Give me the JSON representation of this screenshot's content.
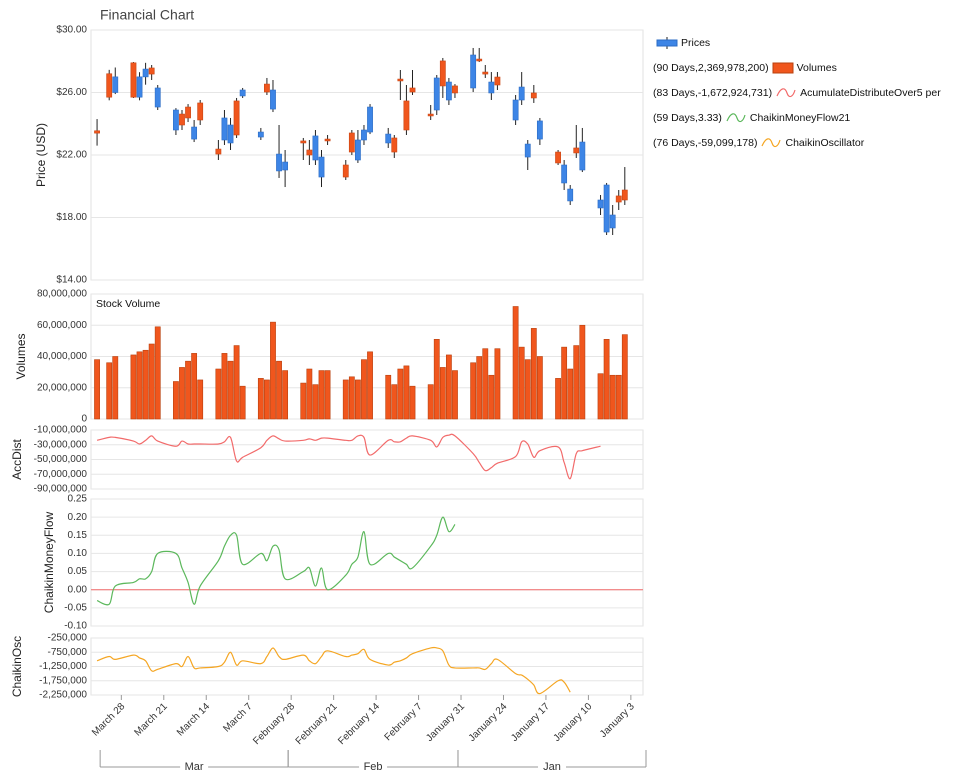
{
  "chart_data": {
    "type": "financial",
    "title": "Financial Chart",
    "x": [
      "April 1",
      "March 30",
      "March 29",
      "March 26",
      "March 25",
      "March 24",
      "March 23",
      "March 22",
      "March 19",
      "March 18",
      "March 17",
      "March 16",
      "March 15",
      "March 12",
      "March 11",
      "March 10",
      "March 9",
      "March 8",
      "March 5",
      "March 4",
      "March 3",
      "March 2",
      "March 1",
      "February 26",
      "February 25",
      "February 24",
      "February 23",
      "February 22",
      "February 19",
      "February 18",
      "February 17",
      "February 16",
      "February 15",
      "February 12",
      "February 11",
      "February 10",
      "February 9",
      "February 8",
      "February 5",
      "February 4",
      "February 3",
      "February 2",
      "February 1",
      "January 29",
      "January 28",
      "January 27",
      "January 26",
      "January 25",
      "January 22",
      "January 21",
      "January 20",
      "January 19",
      "January 18",
      "January 15",
      "January 14",
      "January 13",
      "January 12",
      "January 11",
      "January 8",
      "January 7",
      "January 6",
      "January 5",
      "January 4"
    ],
    "xlim": [
      "April 2",
      "January 1"
    ],
    "xticks": [
      "March 28",
      "March 21",
      "March 14",
      "March 7",
      "February 28",
      "February 21",
      "February 14",
      "February 7",
      "January 31",
      "January 24",
      "January 17",
      "January 10",
      "January 3"
    ],
    "x_groups": [
      {
        "label": "Mar",
        "range": [
          "March 31",
          "March 1"
        ]
      },
      {
        "label": "Feb",
        "range": [
          "February 28",
          "February 1"
        ]
      },
      {
        "label": "Jan",
        "range": [
          "January 31",
          "January 1"
        ]
      }
    ],
    "grid": true,
    "legend": "right",
    "panels": [
      {
        "type": "candlestick",
        "ylabel": "Price (USD)",
        "ylim": [
          14,
          30
        ],
        "yticks": [
          {
            "value": 30,
            "label": "$30.00"
          },
          {
            "value": 26,
            "label": "$26.00"
          },
          {
            "value": 22,
            "label": "$22.00"
          },
          {
            "value": 18,
            "label": "$18.00"
          },
          {
            "value": 14,
            "label": "$14.00"
          }
        ],
        "series": [
          {
            "name": "Prices",
            "color": "#3d85e6",
            "up_color": "#f0561d",
            "open": [
              23.4,
              25.7,
              27.0,
              25.7,
              27.0,
              27.5,
              27.18,
              26.29,
              24.88,
              23.92,
              24.37,
              23.79,
              24.24,
              22.06,
              24.37,
              23.92,
              23.28,
              26.16,
              23.47,
              26.03,
              26.16,
              22.06,
              21.55,
              22.77,
              22.0,
              23.22,
              21.87,
              22.9,
              20.59,
              22.19,
              22.96,
              23.6,
              25.07,
              23.34,
              22.19,
              26.74,
              23.6,
              26.03,
              24.5,
              26.93,
              26.42,
              26.67,
              25.97,
              28.4,
              28.02,
              27.18,
              26.67,
              26.48,
              25.52,
              26.35,
              22.7,
              25.65,
              24.18,
              21.49,
              21.36,
              19.82,
              22.13,
              22.83,
              19.12,
              20.08,
              18.16,
              18.99,
              19.12
            ],
            "high": [
              24.3,
              27.45,
              27.6,
              27.95,
              27.3,
              27.9,
              27.76,
              26.48,
              25.0,
              24.88,
              25.26,
              24.24,
              25.52,
              22.96,
              24.88,
              24.37,
              25.65,
              26.29,
              23.73,
              26.93,
              26.8,
              23.92,
              22.32,
              23.09,
              22.96,
              23.6,
              22.32,
              23.28,
              21.68,
              23.6,
              23.6,
              23.92,
              25.26,
              23.73,
              23.28,
              27.44,
              26.48,
              27.44,
              25.2,
              27.12,
              28.21,
              26.93,
              26.54,
              28.85,
              28.85,
              27.76,
              27.31,
              27.31,
              25.84,
              27.31,
              22.96,
              26.48,
              24.37,
              22.32,
              21.68,
              20.08,
              23.92,
              23.73,
              19.44,
              20.21,
              18.8,
              19.76,
              21.23
            ],
            "low": [
              22.6,
              25.5,
              25.9,
              25.65,
              25.5,
              26.5,
              26.8,
              24.88,
              23.28,
              23.6,
              24.11,
              22.83,
              23.92,
              21.68,
              22.64,
              22.32,
              23.09,
              25.65,
              22.96,
              25.84,
              24.75,
              20.53,
              19.95,
              21.68,
              21.36,
              21.36,
              19.95,
              22.64,
              20.4,
              22.0,
              21.49,
              22.64,
              23.34,
              22.45,
              21.81,
              25.52,
              23.28,
              25.84,
              24.24,
              24.56,
              25.65,
              25.2,
              25.65,
              26.03,
              27.95,
              26.93,
              25.52,
              26.16,
              23.92,
              25.2,
              21.04,
              25.33,
              22.64,
              21.36,
              19.76,
              18.8,
              21.81,
              20.91,
              18.16,
              16.88,
              16.88,
              18.48,
              18.8
            ],
            "close": [
              23.55,
              27.2,
              26.0,
              27.9,
              25.7,
              27.0,
              27.57,
              25.07,
              23.6,
              24.62,
              25.07,
              23.02,
              25.33,
              22.38,
              22.96,
              22.77,
              25.46,
              25.78,
              23.15,
              26.54,
              24.94,
              20.98,
              21.04,
              22.9,
              22.32,
              21.68,
              20.59,
              23.02,
              21.36,
              23.41,
              21.68,
              22.96,
              23.47,
              22.77,
              23.09,
              26.86,
              25.46,
              26.29,
              24.62,
              24.88,
              28.02,
              25.52,
              26.42,
              26.29,
              28.14,
              27.31,
              25.97,
              26.99,
              24.24,
              25.52,
              21.87,
              25.97,
              23.02,
              22.19,
              20.21,
              19.06,
              22.45,
              21.04,
              18.61,
              17.07,
              17.33,
              19.38,
              19.76
            ]
          }
        ]
      },
      {
        "type": "bar",
        "ylabel": "Volumes",
        "annotation": "Stock Volume",
        "ylim": [
          0,
          80000000
        ],
        "yticks": [
          {
            "value": 80000000,
            "label": "80,000,000"
          },
          {
            "value": 60000000,
            "label": "60,000,000"
          },
          {
            "value": 40000000,
            "label": "40,000,000"
          },
          {
            "value": 20000000,
            "label": "20,000,000"
          },
          0
        ],
        "series": [
          {
            "name": "Volumes",
            "legend_prefix": "(90 Days,2,369,978,200)",
            "color": "#f0561d",
            "values": [
              38000000,
              36000000,
              40000000,
              41000000,
              43000000,
              44000000,
              48000000,
              59000000,
              24000000,
              33000000,
              37000000,
              42000000,
              25000000,
              32000000,
              42000000,
              37000000,
              47000000,
              21000000,
              26000000,
              25000000,
              62000000,
              37000000,
              31000000,
              23000000,
              32000000,
              22000000,
              31000000,
              31000000,
              25000000,
              27000000,
              25000000,
              38000000,
              43000000,
              28000000,
              22000000,
              32000000,
              34000000,
              21000000,
              22000000,
              51000000,
              33000000,
              41000000,
              31000000,
              36000000,
              40000000,
              45000000,
              28000000,
              45000000,
              72000000,
              46000000,
              38000000,
              58000000,
              40000000,
              26000000,
              46000000,
              32000000,
              47000000,
              60000000,
              29000000,
              51000000,
              28000000,
              28000000,
              54000000
            ]
          }
        ]
      },
      {
        "type": "line",
        "ylabel": "AccDist",
        "ylim": [
          -90000000,
          -10000000
        ],
        "yticks": [
          {
            "value": -10000000,
            "label": "-10,000,000"
          },
          {
            "value": -30000000,
            "label": "-30,000,000"
          },
          {
            "value": -50000000,
            "label": "-50,000,000"
          },
          {
            "value": -70000000,
            "label": "-70,000,000"
          },
          {
            "value": -90000000,
            "label": "-90,000,000"
          }
        ],
        "series": [
          {
            "name": "AcumulateDistributeOver5 per",
            "legend_prefix": "(83 Days,-1,672,924,731)",
            "color": "#f26b6b",
            "values": [
              -24000000,
              -20000000,
              -20000000,
              -25000000,
              -29000000,
              -24000000,
              -18000000,
              -25000000,
              -32000000,
              -25000000,
              -29000000,
              -29000000,
              -29000000,
              -29000000,
              -26000000,
              -20000000,
              -52000000,
              -47000000,
              -34000000,
              -24000000,
              -18000000,
              -22000000,
              -25000000,
              -24000000,
              -22000000,
              -24000000,
              -21000000,
              -21000000,
              -24000000,
              -24000000,
              -18000000,
              -20000000,
              -44000000,
              -24000000,
              -26000000,
              -26000000,
              -21000000,
              -18000000,
              -24000000,
              -33000000,
              -20000000,
              -17000000,
              -18000000,
              -42000000,
              -54000000,
              -65000000,
              -61000000,
              -55000000,
              -46000000,
              -26000000,
              -29000000,
              -47000000,
              -38000000,
              -33000000,
              -54000000,
              -76000000,
              -42000000,
              -38000000,
              -32000000,
              null,
              null,
              null,
              null
            ]
          }
        ]
      },
      {
        "type": "line",
        "ylabel": "ChaikinMoneyFlow",
        "ylim": [
          -0.1,
          0.25
        ],
        "zero_line_color": "#f26b6b",
        "yticks": [
          0.25,
          {
            "value": 0.2,
            "label": "0.20"
          },
          0.15,
          {
            "value": 0.1,
            "label": "0.10"
          },
          0.05,
          {
            "value": 0,
            "label": "0.00"
          },
          -0.05,
          {
            "value": -0.1,
            "label": "-0.10"
          }
        ],
        "series": [
          {
            "name": "ChaikinMoneyFlow21",
            "legend_prefix": "(59 Days,3.33)",
            "color": "#5cb85c",
            "values": [
              -0.03,
              -0.04,
              0.01,
              0.02,
              0.03,
              0.03,
              0.05,
              0.1,
              0.1,
              0.06,
              0.02,
              -0.04,
              0.01,
              0.08,
              0.12,
              0.15,
              0.15,
              0.07,
              0.1,
              0.08,
              0.12,
              0.11,
              0.03,
              0.05,
              0.06,
              0.01,
              0.06,
              0.0,
              0.04,
              0.07,
              0.09,
              0.16,
              0.07,
              0.1,
              0.09,
              0.08,
              0.07,
              0.06,
              0.12,
              0.15,
              0.2,
              0.16,
              0.18,
              null,
              null,
              null,
              null,
              null,
              null,
              null,
              null,
              null,
              null,
              null,
              null,
              null,
              null,
              null,
              null,
              null,
              null,
              null,
              null
            ]
          }
        ]
      },
      {
        "type": "line",
        "ylabel": "ChaikinOsc",
        "ylim": [
          -2250000,
          -250000
        ],
        "yticks": [
          {
            "value": -250000,
            "label": "-250,000"
          },
          {
            "value": -750000,
            "label": "-750,000"
          },
          {
            "value": -1250000,
            "label": "-1,250,000"
          },
          {
            "value": -1750000,
            "label": "-1,750,000"
          },
          {
            "value": -2250000,
            "label": "-2,250,000"
          }
        ],
        "series": [
          {
            "name": "ChaikinOscillator",
            "legend_prefix": "(76 Days,-59,099,178)",
            "color": "#f5a623",
            "values": [
              -1050000,
              -900000,
              -1000000,
              -850000,
              -950000,
              -1050000,
              -1400000,
              -1350000,
              -1150000,
              -1250000,
              -900000,
              -1300000,
              -1300000,
              -1250000,
              -1100000,
              -750000,
              -1200000,
              -1050000,
              -1150000,
              -900000,
              -600000,
              -900000,
              -1000000,
              -850000,
              -1050000,
              -1150000,
              -900000,
              -700000,
              -900000,
              -850000,
              -800000,
              -650000,
              -1000000,
              -1200000,
              -1100000,
              -1050000,
              -950000,
              -800000,
              -600000,
              -600000,
              -700000,
              -1200000,
              -1300000,
              -1300000,
              -1300000,
              -1350000,
              -1150000,
              -1000000,
              -1500000,
              -1550000,
              -1700000,
              -1900000,
              -2200000,
              -1750000,
              -1800000,
              -2150000,
              null,
              null,
              null,
              null,
              null,
              null,
              null
            ]
          }
        ]
      }
    ]
  }
}
